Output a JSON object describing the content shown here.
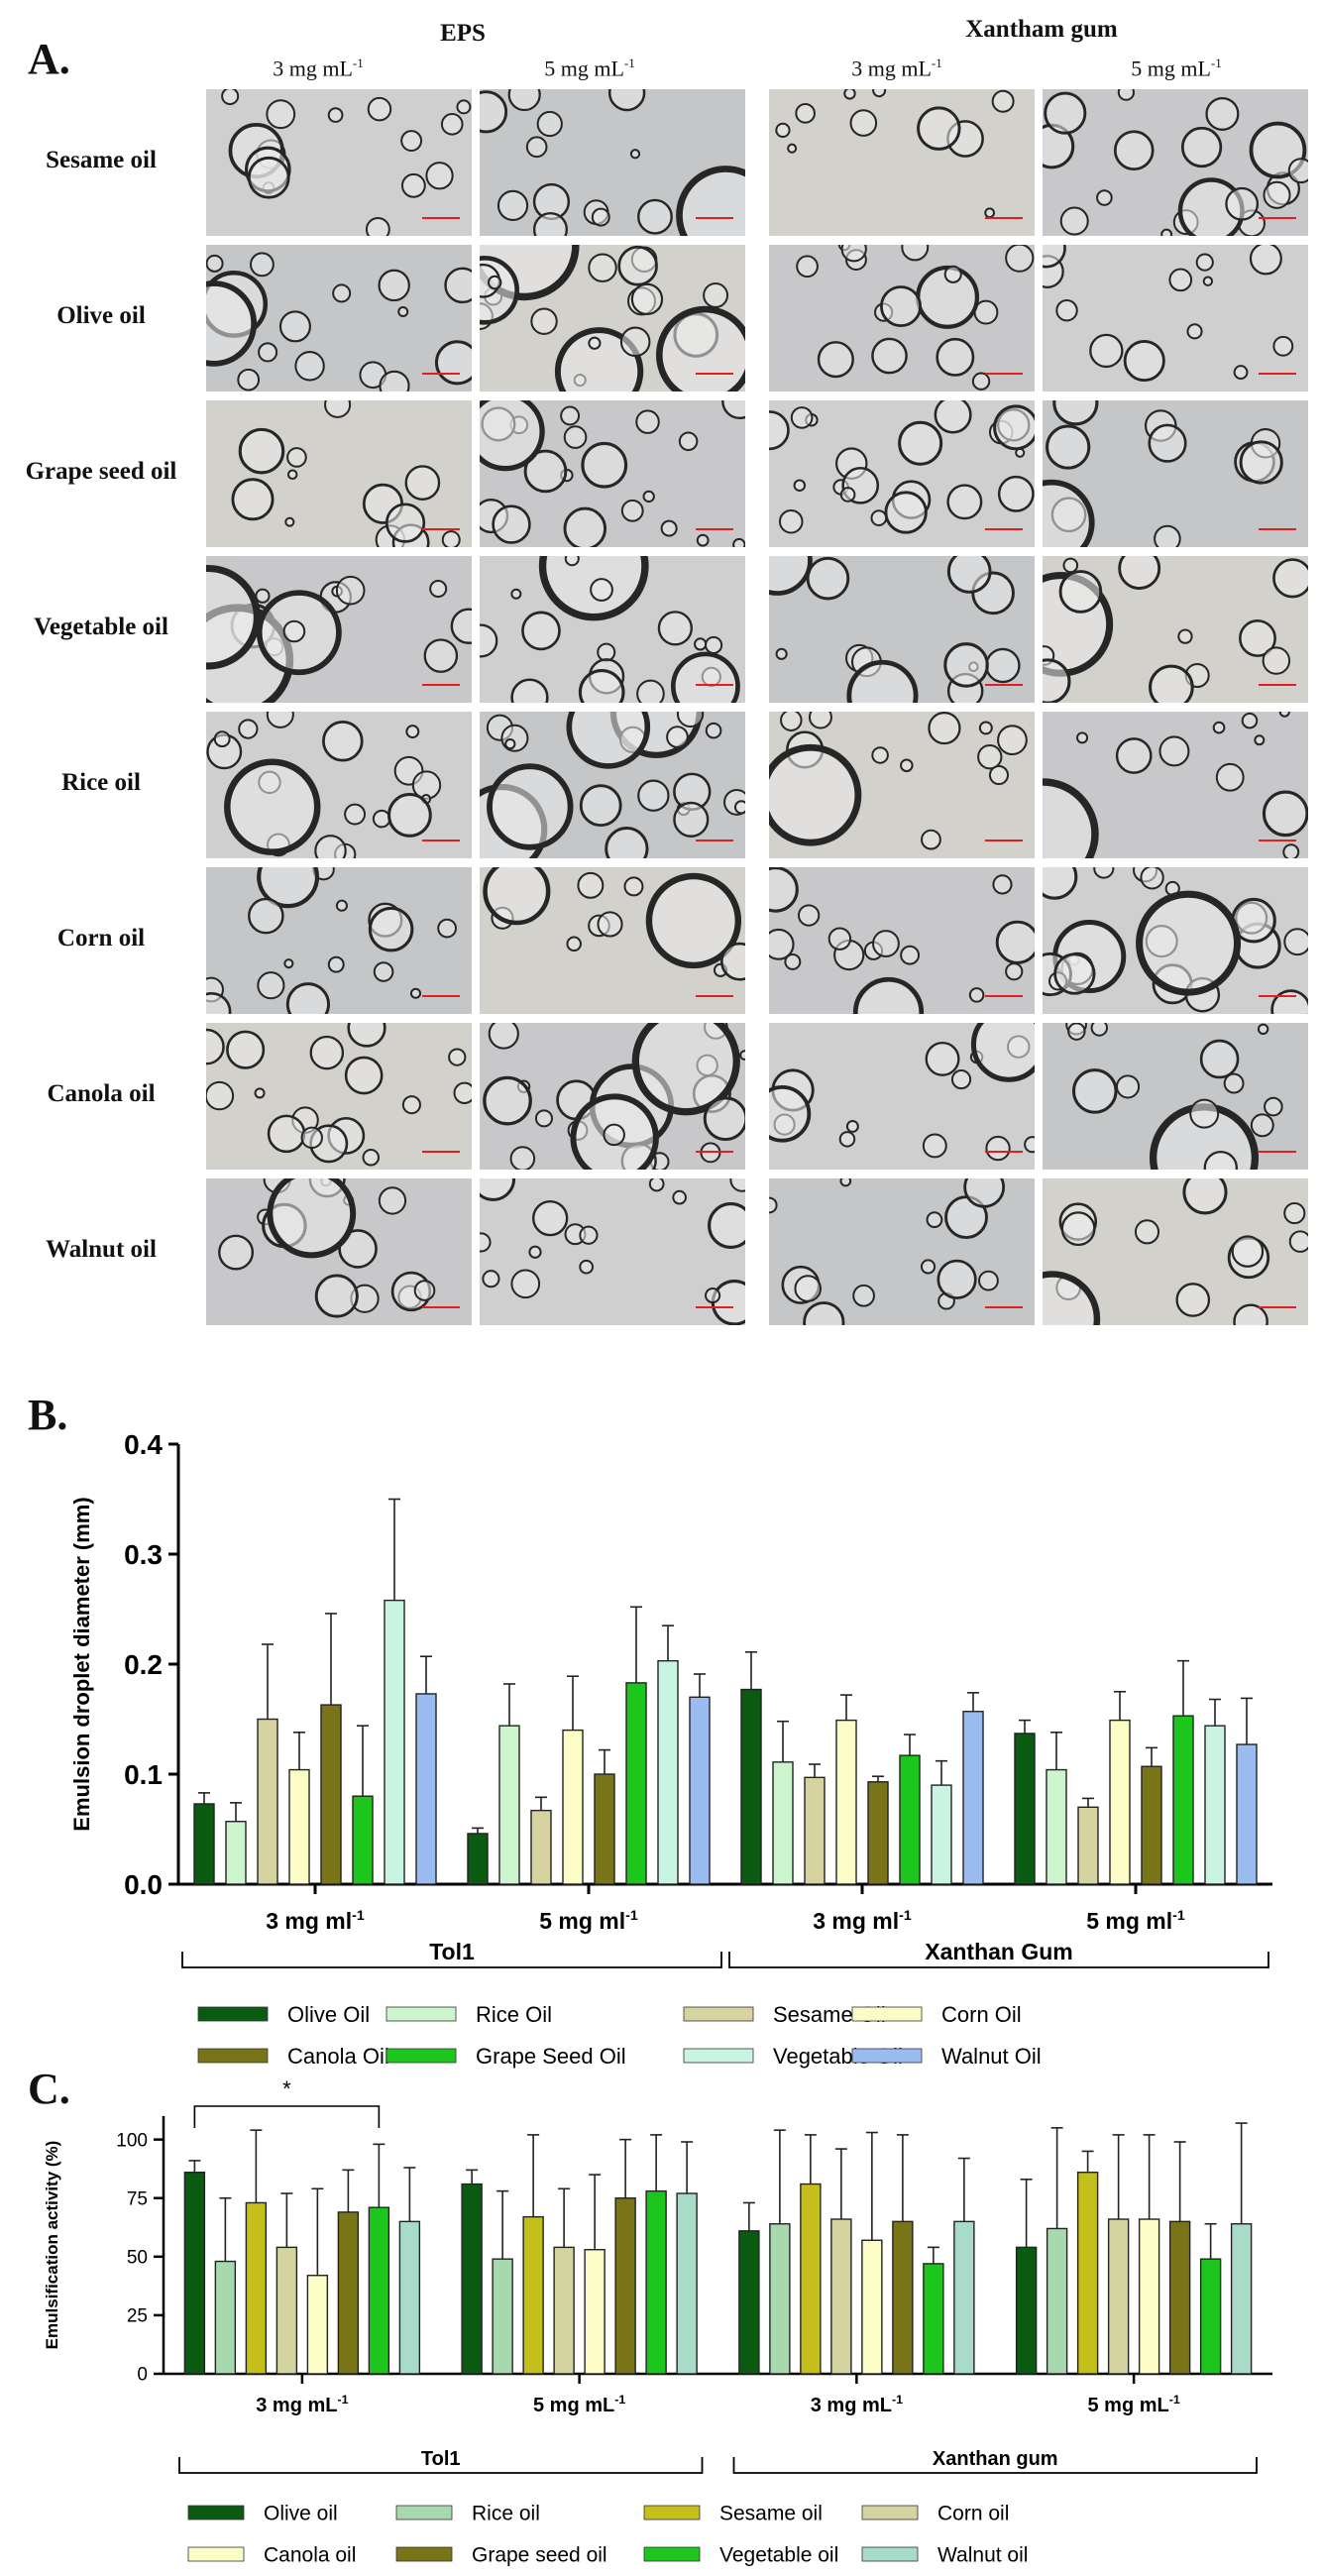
{
  "panelA": {
    "letter": "A.",
    "groups": [
      "EPS",
      "Xantham gum"
    ],
    "concentrations": [
      "3 mg mL",
      "5 mg mL",
      "3 mg mL",
      "5 mg mL"
    ],
    "conc_sup": "-1",
    "oils": [
      "Sesame oil",
      "Olive oil",
      "Grape seed oil",
      "Vegetable oil",
      "Rice oil",
      "Corn oil",
      "Canola oil",
      "Walnut oil"
    ]
  },
  "chart_data": [
    {
      "type": "bar",
      "panel": "B.",
      "ylabel": "Emulsion droplet diameter (mm)",
      "ylim": [
        0,
        0.4
      ],
      "yticks": [
        "0.0",
        "0.1",
        "0.2",
        "0.3",
        "0.4"
      ],
      "categories": [
        "3 mg ml",
        "5 mg ml",
        "3 mg ml",
        "5 mg ml"
      ],
      "category_sup": "-1",
      "brackets": [
        "Tol1",
        "Xanthan Gum"
      ],
      "series": [
        {
          "name": "Olive Oil",
          "color": "#0b5a12",
          "values": [
            0.073,
            0.046,
            0.177,
            0.137
          ],
          "errors": [
            0.01,
            0.005,
            0.034,
            0.012
          ]
        },
        {
          "name": "Rice Oil",
          "color": "#cdf5cd",
          "values": [
            0.057,
            0.144,
            0.111,
            0.104
          ],
          "errors": [
            0.017,
            0.038,
            0.037,
            0.034
          ]
        },
        {
          "name": "Sesame Oil",
          "color": "#d6d3a0",
          "values": [
            0.15,
            0.067,
            0.097,
            0.07
          ],
          "errors": [
            0.068,
            0.012,
            0.012,
            0.008
          ]
        },
        {
          "name": "Corn Oil",
          "color": "#fbfcc6",
          "values": [
            0.104,
            0.14,
            0.149,
            0.149
          ],
          "errors": [
            0.034,
            0.049,
            0.023,
            0.026
          ]
        },
        {
          "name": "Canola Oil",
          "color": "#7a7419",
          "values": [
            0.163,
            0.1,
            0.093,
            0.107
          ],
          "errors": [
            0.083,
            0.022,
            0.005,
            0.017
          ]
        },
        {
          "name": "Grape Seed Oil",
          "color": "#1cc61c",
          "values": [
            0.08,
            0.183,
            0.117,
            0.153
          ],
          "errors": [
            0.064,
            0.069,
            0.019,
            0.05
          ]
        },
        {
          "name": "Vegetable Oil",
          "color": "#c9f4e2",
          "values": [
            0.258,
            0.203,
            0.09,
            0.144
          ],
          "errors": [
            0.092,
            0.032,
            0.022,
            0.024
          ]
        },
        {
          "name": "Walnut Oil",
          "color": "#9bbcf0",
          "values": [
            0.173,
            0.17,
            0.157,
            0.127
          ],
          "errors": [
            0.034,
            0.021,
            0.017,
            0.042
          ]
        }
      ]
    },
    {
      "type": "bar",
      "panel": "C.",
      "ylabel": "Emulsification activity (%)",
      "ylim": [
        0,
        110
      ],
      "yticks": [
        "0",
        "25",
        "50",
        "75",
        "100"
      ],
      "categories": [
        "3 mg mL",
        "5 mg mL",
        "3 mg mL",
        "5 mg mL"
      ],
      "category_sup": "-1",
      "brackets": [
        "Tol1",
        "Xanthan gum"
      ],
      "significance": "*",
      "series": [
        {
          "name": "Olive oil",
          "color": "#0b5a12",
          "values": [
            86,
            81,
            61,
            54
          ],
          "errors": [
            5,
            6,
            12,
            29
          ]
        },
        {
          "name": "Rice oil",
          "color": "#a8d8ad",
          "values": [
            48,
            49,
            64,
            62
          ],
          "errors": [
            27,
            29,
            40,
            43
          ]
        },
        {
          "name": "Sesame oil",
          "color": "#c4bf1a",
          "values": [
            73,
            67,
            81,
            86
          ],
          "errors": [
            31,
            35,
            21,
            9
          ]
        },
        {
          "name": "Corn oil",
          "color": "#d4d4a0",
          "values": [
            54,
            54,
            66,
            66
          ],
          "errors": [
            23,
            25,
            30,
            36
          ]
        },
        {
          "name": "Canola oil",
          "color": "#fbfcc6",
          "values": [
            42,
            53,
            57,
            66
          ],
          "errors": [
            37,
            32,
            46,
            36
          ]
        },
        {
          "name": "Grape seed oil",
          "color": "#7a7419",
          "values": [
            69,
            75,
            65,
            65
          ],
          "errors": [
            18,
            25,
            37,
            34
          ]
        },
        {
          "name": "Vegetable oil",
          "color": "#1cc61c",
          "values": [
            71,
            78,
            47,
            49
          ],
          "errors": [
            27,
            24,
            7,
            15
          ]
        },
        {
          "name": "Walnut oil",
          "color": "#a8dcc8",
          "values": [
            65,
            77,
            65,
            64
          ],
          "errors": [
            23,
            22,
            27,
            43
          ]
        }
      ]
    }
  ]
}
